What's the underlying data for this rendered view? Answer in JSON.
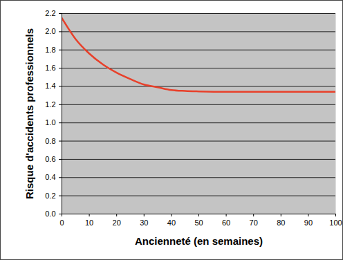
{
  "chart_data": {
    "type": "line",
    "x_label": "Ancienneté (en semaines)",
    "y_label": "Risque d'accidents professionnels",
    "x": [
      0,
      5,
      10,
      15,
      20,
      25,
      30,
      35,
      40,
      45,
      50,
      60,
      70,
      80,
      90,
      100
    ],
    "values": [
      2.15,
      1.92,
      1.76,
      1.64,
      1.55,
      1.48,
      1.42,
      1.39,
      1.36,
      1.35,
      1.345,
      1.34,
      1.34,
      1.34,
      1.34,
      1.34
    ],
    "color": "#e8402a",
    "xlim": [
      0,
      100
    ],
    "xticks": [
      0,
      10,
      20,
      30,
      40,
      50,
      60,
      70,
      80,
      90,
      100
    ],
    "ylim": [
      0,
      2.2
    ],
    "yticks": [
      {
        "value": 0,
        "label": "0.0"
      },
      0.2,
      0.4,
      0.6,
      0.8,
      {
        "value": 1,
        "label": "1.0"
      },
      1.2,
      1.4,
      1.6,
      1.8,
      {
        "value": 2,
        "label": "2.0"
      },
      2.2
    ],
    "grid": true
  }
}
